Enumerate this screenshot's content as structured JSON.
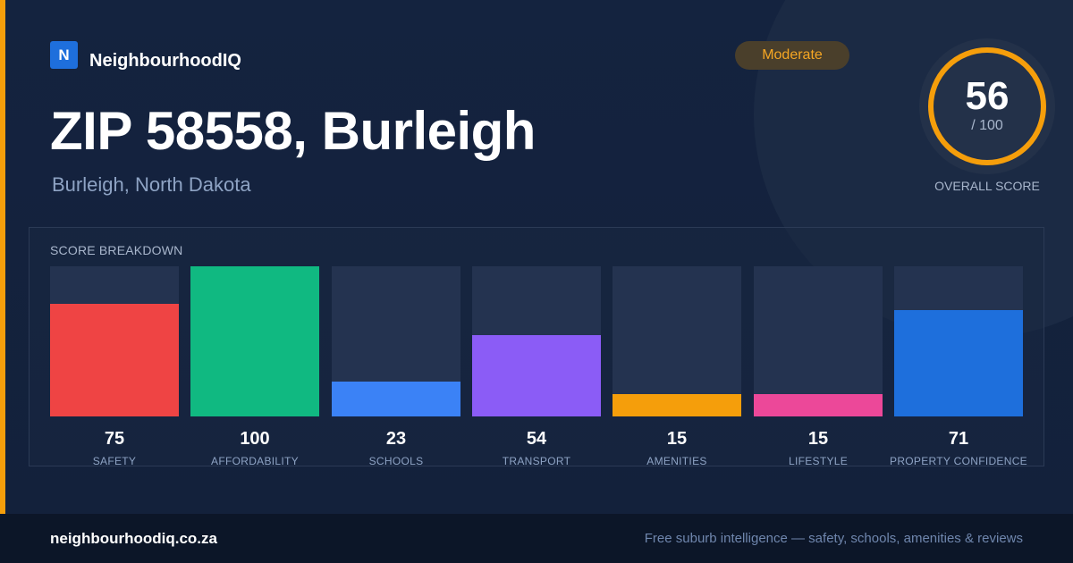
{
  "brand": {
    "logo_letter": "N",
    "name": "NeighbourhoodIQ"
  },
  "status_badge": "Moderate",
  "title": "ZIP 58558, Burleigh",
  "subtitle": "Burleigh, North Dakota",
  "overall": {
    "score": "56",
    "out_of": "/ 100",
    "label": "OVERALL SCORE",
    "fraction": 1.0
  },
  "panel": {
    "title": "SCORE BREAKDOWN"
  },
  "colors": {
    "accent": "#f59e0b",
    "safety": "#ef4444",
    "affordability": "#10b981",
    "schools": "#3b82f6",
    "transport": "#8b5cf6",
    "amenities": "#f59e0b",
    "lifestyle": "#ec4899",
    "property_confidence": "#1e6fdc"
  },
  "chart_data": {
    "type": "bar",
    "title": "SCORE BREAKDOWN",
    "categories": [
      "SAFETY",
      "AFFORDABILITY",
      "SCHOOLS",
      "TRANSPORT",
      "AMENITIES",
      "LIFESTYLE",
      "PROPERTY CONFIDENCE"
    ],
    "values": [
      75,
      100,
      23,
      54,
      15,
      15,
      71
    ],
    "value_labels": [
      "75",
      "100",
      "23",
      "54",
      "15",
      "15",
      "71"
    ],
    "colors": [
      "#ef4444",
      "#10b981",
      "#3b82f6",
      "#8b5cf6",
      "#f59e0b",
      "#ec4899",
      "#1e6fdc"
    ],
    "ylim": [
      0,
      100
    ],
    "grid": false
  },
  "footer": {
    "url": "neighbourhoodiq.co.za",
    "tagline": "Free suburb intelligence — safety, schools, amenities & reviews"
  }
}
